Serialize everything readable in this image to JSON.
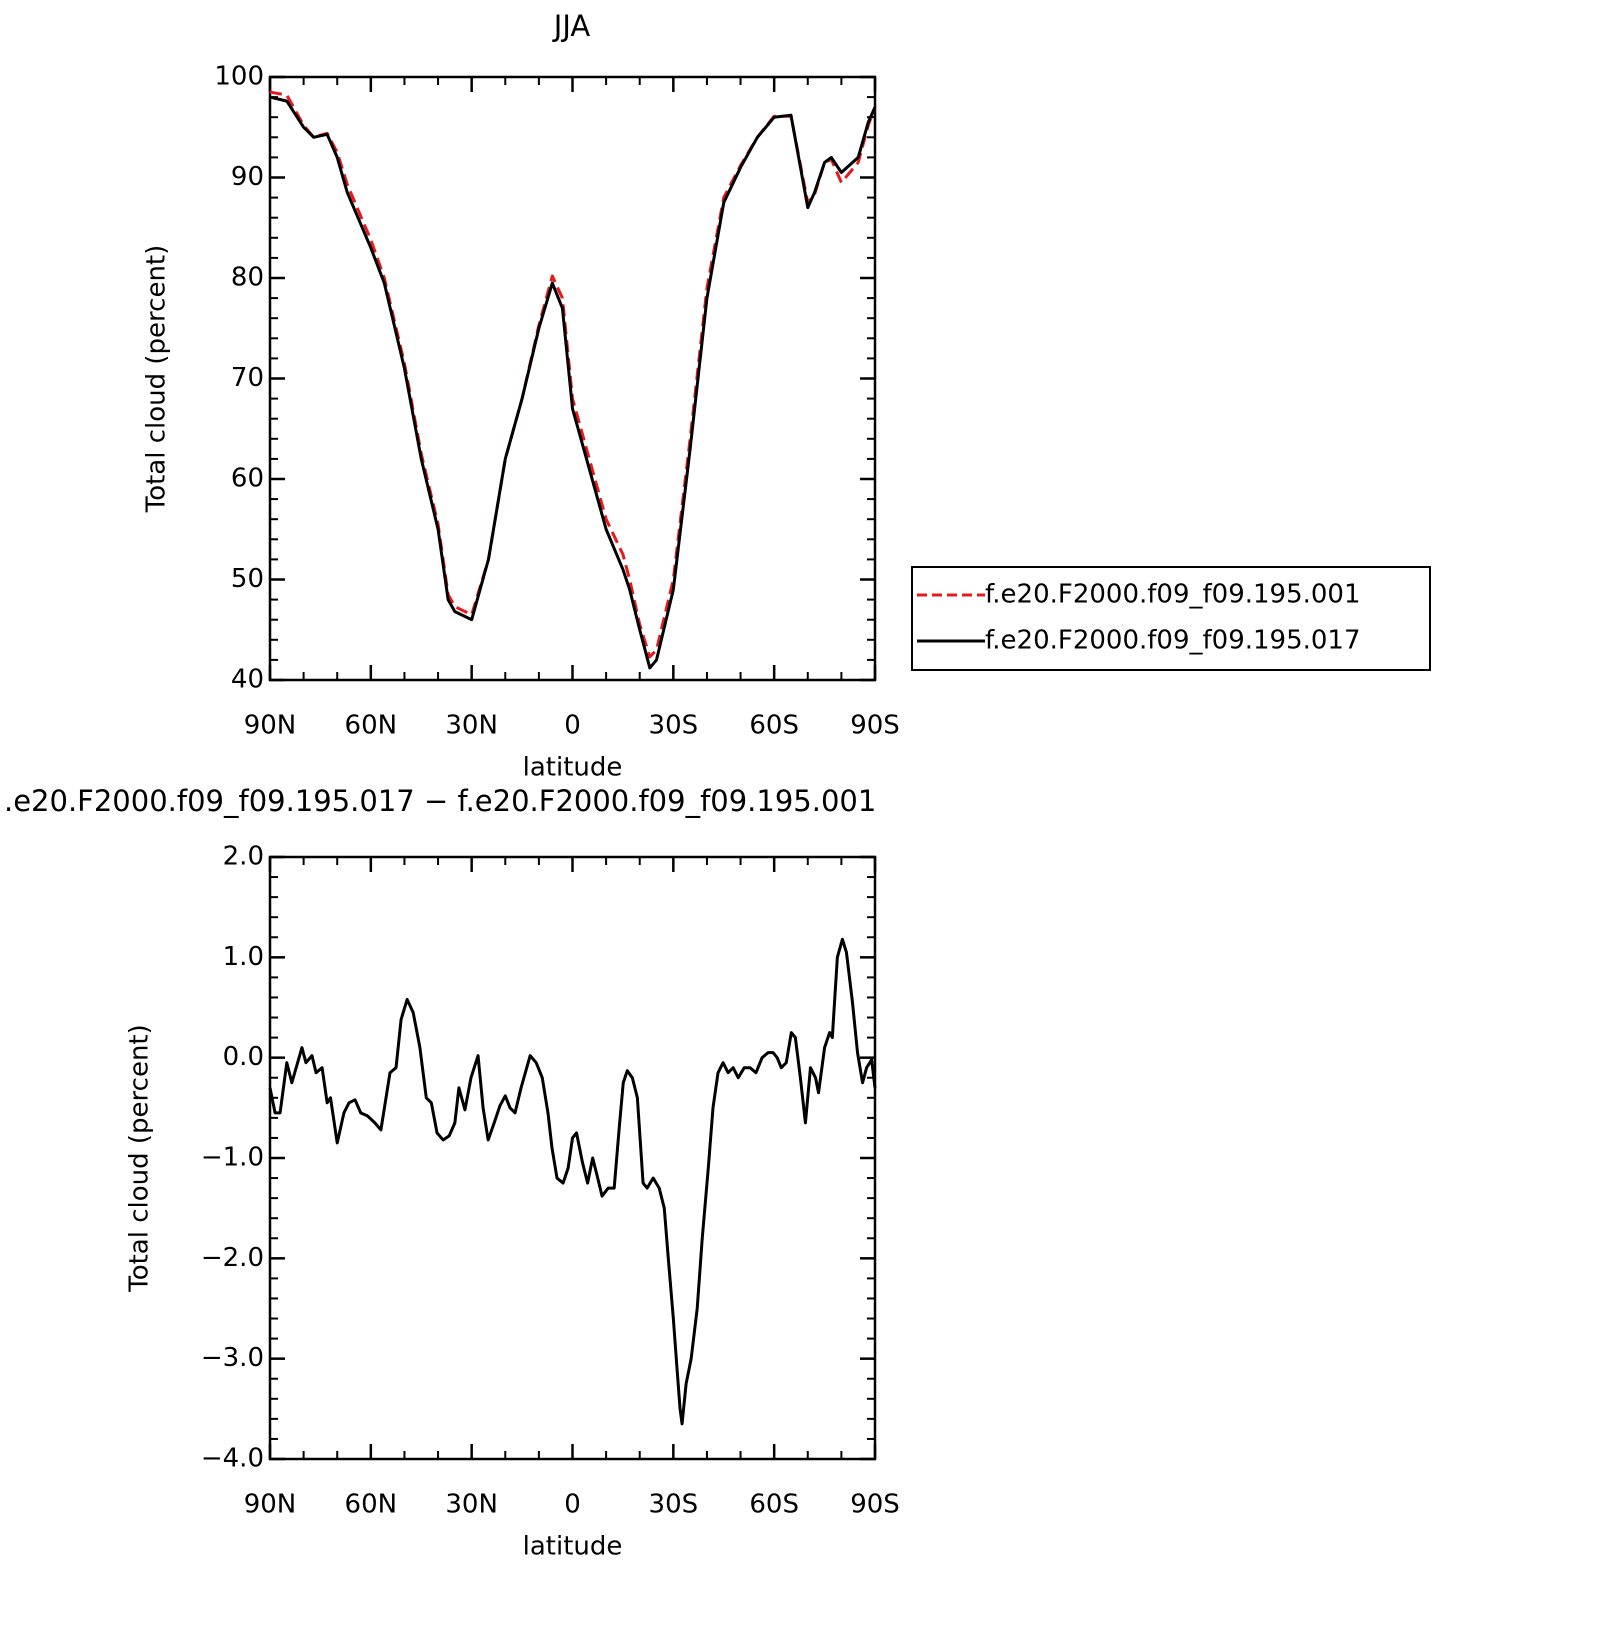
{
  "chart_data": [
    {
      "type": "line",
      "title": "JJA",
      "xlabel": "latitude",
      "ylabel": "Total cloud (percent)",
      "x": [
        90,
        85,
        80,
        77,
        73,
        70,
        67,
        60,
        56,
        50,
        45,
        40,
        37,
        35,
        30,
        25,
        20,
        15,
        10,
        6,
        3,
        0,
        -5,
        -10,
        -15,
        -17,
        -20,
        -23,
        -25,
        -30,
        -35,
        -40,
        -45,
        -50,
        -55,
        -60,
        -65,
        -70,
        -72,
        -75,
        -77,
        -80,
        -85,
        -88,
        -90
      ],
      "series": [
        {
          "name": "f.e20.F2000.f09_f09.195.001",
          "color": "#e8191c",
          "style": "dashed",
          "values": [
            98.5,
            98.2,
            95.2,
            94,
            94.4,
            92.5,
            89.3,
            83.8,
            80,
            71.5,
            62.5,
            55.5,
            48.5,
            47.3,
            46.5,
            52,
            62,
            68,
            75.3,
            80.2,
            78,
            68,
            62,
            56,
            52.5,
            50,
            45.5,
            42.3,
            43,
            50,
            64,
            79,
            88,
            91.2,
            94,
            96.1,
            96.1,
            87.5,
            88.3,
            91.5,
            91.8,
            89.5,
            91.5,
            95.2,
            97
          ]
        },
        {
          "name": "f.e20.F2000.f09_f09.195.017",
          "color": "#000000",
          "style": "solid",
          "values": [
            98,
            97.6,
            95,
            94,
            94.3,
            92,
            88.5,
            83,
            79.5,
            71,
            62,
            55,
            48,
            46.8,
            46,
            52,
            62,
            68,
            75,
            79.5,
            77,
            67,
            61,
            55,
            51,
            49,
            45,
            41.2,
            42,
            49,
            63,
            78,
            87.5,
            91,
            94,
            96,
            96.2,
            87,
            88.5,
            91.5,
            92,
            90.5,
            92,
            95.5,
            97
          ]
        }
      ],
      "xlim": [
        90,
        -90
      ],
      "xticks": [
        {
          "value": 90,
          "label": "90N"
        },
        {
          "value": 60,
          "label": "60N"
        },
        {
          "value": 30,
          "label": "30N"
        },
        0,
        {
          "value": -30,
          "label": "30S"
        },
        {
          "value": -60,
          "label": "60S"
        },
        {
          "value": -90,
          "label": "90S"
        }
      ],
      "ylim": [
        40,
        100
      ],
      "yticks": [
        40,
        50,
        60,
        70,
        80,
        90,
        100
      ],
      "legend": "right"
    },
    {
      "type": "line",
      "title": ".e20.F2000.f09_f09.195.017 − f.e20.F2000.f09_f09.195.001",
      "xlabel": "latitude",
      "ylabel": "Total cloud (percent)",
      "x": [
        90,
        88.5,
        87,
        85,
        83.5,
        80.5,
        79.3,
        77.5,
        76.3,
        74.5,
        73,
        72,
        70,
        68,
        66.5,
        64.7,
        63,
        61,
        58.8,
        57,
        54.3,
        52.5,
        51,
        49.2,
        47.4,
        45.4,
        43.5,
        42,
        40.3,
        38.5,
        36.7,
        35,
        33.8,
        32,
        30.2,
        28.1,
        26.6,
        25.1,
        23.3,
        21.6,
        20,
        18.6,
        17.1,
        15.3,
        12.6,
        10.8,
        9,
        7.3,
        6.1,
        4.6,
        2.8,
        1.3,
        0,
        -1.2,
        -3,
        -4.5,
        -6,
        -7.5,
        -8.8,
        -10.6,
        -12.4,
        -13.9,
        -15.1,
        -16.3,
        -17.8,
        -19.3,
        -21,
        -22.2,
        -24,
        -25.8,
        -27.3,
        -28.5,
        -30,
        -31.1,
        -32,
        -32.6,
        -33.8,
        -35.3,
        -37.1,
        -38.6,
        -40.4,
        -41.8,
        -43.3,
        -44.8,
        -46.3,
        -47.8,
        -49.3,
        -51.1,
        -52.8,
        -54.6,
        -56.4,
        -58.2,
        -59.7,
        -60.9,
        -62.1,
        -63.6,
        -65.1,
        -66.3,
        -67.8,
        -69.3,
        -70.8,
        -72.3,
        -73.2,
        -75,
        -76.5,
        -77.3,
        -78.8,
        -80.3,
        -81.5,
        -83.3,
        -84.8,
        -86.3,
        -87.5,
        -89,
        -90
      ],
      "series": [
        {
          "color": "#000000",
          "style": "solid",
          "values": [
            -0.3,
            -0.55,
            -0.55,
            -0.05,
            -0.25,
            0.1,
            -0.05,
            0.02,
            -0.15,
            -0.1,
            -0.45,
            -0.4,
            -0.85,
            -0.55,
            -0.45,
            -0.42,
            -0.55,
            -0.58,
            -0.65,
            -0.72,
            -0.15,
            -0.1,
            0.38,
            0.58,
            0.45,
            0.1,
            -0.4,
            -0.45,
            -0.75,
            -0.82,
            -0.78,
            -0.65,
            -0.3,
            -0.52,
            -0.2,
            0.02,
            -0.5,
            -0.82,
            -0.65,
            -0.48,
            -0.38,
            -0.5,
            -0.55,
            -0.3,
            0.02,
            -0.05,
            -0.2,
            -0.55,
            -0.9,
            -1.2,
            -1.25,
            -1.1,
            -0.8,
            -0.75,
            -1.05,
            -1.25,
            -1.0,
            -1.2,
            -1.38,
            -1.3,
            -1.3,
            -0.7,
            -0.25,
            -0.13,
            -0.2,
            -0.4,
            -1.25,
            -1.3,
            -1.2,
            -1.3,
            -1.5,
            -2.0,
            -2.6,
            -3.1,
            -3.5,
            -3.65,
            -3.25,
            -3.0,
            -2.5,
            -1.8,
            -1.1,
            -0.5,
            -0.15,
            -0.05,
            -0.15,
            -0.1,
            -0.2,
            -0.1,
            -0.1,
            -0.15,
            0.0,
            0.05,
            0.05,
            0.0,
            -0.1,
            -0.05,
            0.25,
            0.2,
            -0.2,
            -0.65,
            -0.1,
            -0.2,
            -0.35,
            0.1,
            0.25,
            0.2,
            1.0,
            1.18,
            1.05,
            0.55,
            0.05,
            -0.25,
            -0.1,
            -0.02,
            -0.3
          ]
        }
      ],
      "xlim": [
        90,
        -90
      ],
      "xticks": [
        {
          "value": 90,
          "label": "90N"
        },
        {
          "value": 60,
          "label": "60N"
        },
        {
          "value": 30,
          "label": "30N"
        },
        0,
        {
          "value": -30,
          "label": "30S"
        },
        {
          "value": -60,
          "label": "60S"
        },
        {
          "value": -90,
          "label": "90S"
        }
      ],
      "ylim": [
        -4,
        2
      ],
      "yticks": [
        {
          "value": -4,
          "label": "−4.0"
        },
        {
          "value": -3,
          "label": "−3.0"
        },
        {
          "value": -2,
          "label": "−2.0"
        },
        {
          "value": -1,
          "label": "−1.0"
        },
        {
          "value": 0,
          "label": "0.0"
        },
        {
          "value": 1,
          "label": "1.0"
        },
        {
          "value": 2,
          "label": "2.0"
        }
      ]
    }
  ]
}
